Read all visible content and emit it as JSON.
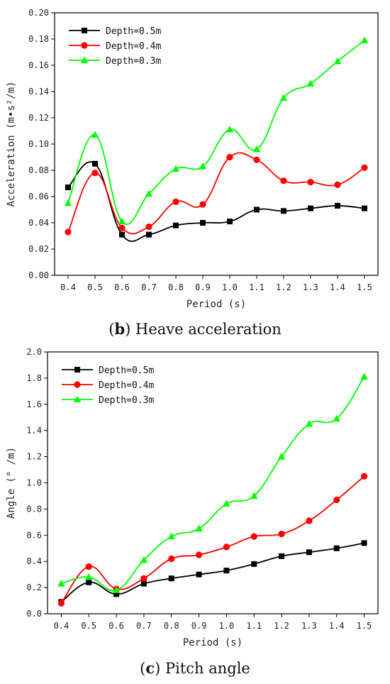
{
  "figures": [
    {
      "caption_letter": "b",
      "caption_text": "Heave acceleration",
      "chart_data": {
        "type": "line",
        "title": "",
        "xlabel": "Period (s)",
        "ylabel": "Acceleration (m•s²/m)",
        "xlim": [
          0.35,
          1.55
        ],
        "ylim": [
          0,
          0.2
        ],
        "x_ticks": [
          0.4,
          0.5,
          0.6,
          0.7,
          0.8,
          0.9,
          1.0,
          1.1,
          1.2,
          1.3,
          1.4,
          1.5
        ],
        "x_tick_labels": [
          "0.4",
          "0.5",
          "0.6",
          "0.7",
          "0.8",
          "0.9",
          "1.0",
          "1.1",
          "1.2",
          "1.3",
          "1.4",
          "1.5"
        ],
        "y_ticks": [
          0,
          0.02,
          0.04,
          0.06,
          0.08,
          0.1,
          0.12,
          0.14,
          0.16,
          0.18,
          0.2
        ],
        "y_tick_labels": [
          "0.00",
          "0.02",
          "0.04",
          "0.06",
          "0.08",
          "0.10",
          "0.12",
          "0.14",
          "0.16",
          "0.18",
          "0.20"
        ],
        "legend_position": "top-left",
        "x": [
          0.4,
          0.5,
          0.6,
          0.7,
          0.8,
          0.9,
          1.0,
          1.1,
          1.2,
          1.3,
          1.4,
          1.5
        ],
        "series": [
          {
            "name": "Depth=0.5m",
            "color": "#000000",
            "marker": "square",
            "values": [
              0.067,
              0.085,
              0.031,
              0.031,
              0.038,
              0.04,
              0.041,
              0.05,
              0.049,
              0.051,
              0.053,
              0.051
            ]
          },
          {
            "name": "Depth=0.4m",
            "color": "#ff0000",
            "marker": "circle",
            "values": [
              0.033,
              0.078,
              0.036,
              0.037,
              0.056,
              0.054,
              0.09,
              0.088,
              0.072,
              0.071,
              0.069,
              0.082
            ]
          },
          {
            "name": "Depth=0.3m",
            "color": "#00ff00",
            "marker": "triangle",
            "values": [
              0.055,
              0.107,
              0.041,
              0.062,
              0.081,
              0.083,
              0.111,
              0.096,
              0.135,
              0.146,
              0.163,
              0.179
            ]
          }
        ]
      }
    },
    {
      "caption_letter": "c",
      "caption_text": "Pitch angle",
      "chart_data": {
        "type": "line",
        "title": "",
        "xlabel": "Period (s)",
        "ylabel": "Angle (° /m)",
        "xlim": [
          0.35,
          1.55
        ],
        "ylim": [
          0,
          2.0
        ],
        "x_ticks": [
          0.4,
          0.5,
          0.6,
          0.7,
          0.8,
          0.9,
          1.0,
          1.1,
          1.2,
          1.3,
          1.4,
          1.5
        ],
        "x_tick_labels": [
          "0.4",
          "0.5",
          "0.6",
          "0.7",
          "0.8",
          "0.9",
          "1.0",
          "1.1",
          "1.2",
          "1.3",
          "1.4",
          "1.5"
        ],
        "y_ticks": [
          0,
          0.2,
          0.4,
          0.6,
          0.8,
          1.0,
          1.2,
          1.4,
          1.6,
          1.8,
          2.0
        ],
        "y_tick_labels": [
          "0.0",
          "0.2",
          "0.4",
          "0.6",
          "0.8",
          "1.0",
          "1.2",
          "1.4",
          "1.6",
          "1.8",
          "2.0"
        ],
        "legend_position": "top-left",
        "x": [
          0.4,
          0.5,
          0.6,
          0.7,
          0.8,
          0.9,
          1.0,
          1.1,
          1.2,
          1.3,
          1.4,
          1.5
        ],
        "series": [
          {
            "name": "Depth=0.5m",
            "color": "#000000",
            "marker": "square",
            "values": [
              0.09,
              0.24,
              0.15,
              0.23,
              0.27,
              0.3,
              0.33,
              0.38,
              0.44,
              0.47,
              0.5,
              0.54
            ]
          },
          {
            "name": "Depth=0.4m",
            "color": "#ff0000",
            "marker": "circle",
            "values": [
              0.08,
              0.36,
              0.19,
              0.27,
              0.42,
              0.45,
              0.51,
              0.59,
              0.61,
              0.71,
              0.87,
              1.05
            ]
          },
          {
            "name": "Depth=0.3m",
            "color": "#00ff00",
            "marker": "triangle",
            "values": [
              0.23,
              0.28,
              0.18,
              0.41,
              0.59,
              0.65,
              0.84,
              0.9,
              1.2,
              1.45,
              1.49,
              1.81
            ]
          }
        ]
      }
    }
  ]
}
